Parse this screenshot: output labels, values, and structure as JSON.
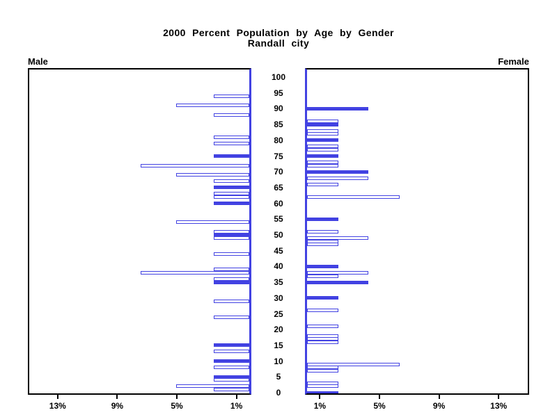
{
  "chart_data": {
    "type": "bar",
    "variant": "population-pyramid",
    "title": "2000 Percent Population by Age by Gender",
    "subtitle": "Randall city",
    "left_panel": {
      "label": "Male",
      "tick_values": [
        13,
        9,
        5,
        1
      ],
      "tick_labels": [
        "13%",
        "9%",
        "5%",
        "1%"
      ]
    },
    "right_panel": {
      "label": "Female",
      "tick_values": [
        1,
        5,
        9,
        13
      ],
      "tick_labels": [
        "1%",
        "5%",
        "9%",
        "13%"
      ]
    },
    "x_axis": {
      "unit": "percent",
      "min": 0,
      "max": 15
    },
    "age_axis": {
      "min": 0,
      "max": 100,
      "step": 5,
      "tick_values": [
        0,
        5,
        10,
        15,
        20,
        25,
        30,
        35,
        40,
        45,
        50,
        55,
        60,
        65,
        70,
        75,
        80,
        85,
        90,
        95,
        100
      ]
    },
    "legend": "solid bars = ages at multiples of 5; hollow bars = other single years of age",
    "colors": {
      "bar": "#4242e2",
      "frame": "#000000",
      "background": "#ffffff"
    },
    "series": [
      {
        "name": "Male",
        "side": "left",
        "bars": [
          {
            "age": 94,
            "pct": 2.4,
            "filled": false
          },
          {
            "age": 91,
            "pct": 4.9,
            "filled": false
          },
          {
            "age": 88,
            "pct": 2.4,
            "filled": false
          },
          {
            "age": 81,
            "pct": 2.4,
            "filled": false
          },
          {
            "age": 79,
            "pct": 2.4,
            "filled": false
          },
          {
            "age": 75,
            "pct": 2.4,
            "filled": true
          },
          {
            "age": 72,
            "pct": 7.3,
            "filled": false
          },
          {
            "age": 69,
            "pct": 4.9,
            "filled": false
          },
          {
            "age": 67,
            "pct": 2.4,
            "filled": false
          },
          {
            "age": 65,
            "pct": 2.4,
            "filled": true
          },
          {
            "age": 63,
            "pct": 2.4,
            "filled": false
          },
          {
            "age": 62,
            "pct": 2.4,
            "filled": false
          },
          {
            "age": 60,
            "pct": 2.4,
            "filled": true
          },
          {
            "age": 54,
            "pct": 4.9,
            "filled": false
          },
          {
            "age": 51,
            "pct": 2.4,
            "filled": false
          },
          {
            "age": 50,
            "pct": 2.4,
            "filled": true
          },
          {
            "age": 49,
            "pct": 2.4,
            "filled": false
          },
          {
            "age": 44,
            "pct": 2.4,
            "filled": false
          },
          {
            "age": 39,
            "pct": 2.4,
            "filled": false
          },
          {
            "age": 38,
            "pct": 7.3,
            "filled": false
          },
          {
            "age": 36,
            "pct": 2.4,
            "filled": false
          },
          {
            "age": 35,
            "pct": 2.4,
            "filled": true
          },
          {
            "age": 29,
            "pct": 2.4,
            "filled": false
          },
          {
            "age": 24,
            "pct": 2.4,
            "filled": false
          },
          {
            "age": 15,
            "pct": 2.4,
            "filled": true
          },
          {
            "age": 13,
            "pct": 2.4,
            "filled": false
          },
          {
            "age": 10,
            "pct": 2.4,
            "filled": true
          },
          {
            "age": 8,
            "pct": 2.4,
            "filled": false
          },
          {
            "age": 5,
            "pct": 2.4,
            "filled": true
          },
          {
            "age": 4,
            "pct": 2.4,
            "filled": false
          },
          {
            "age": 2,
            "pct": 4.9,
            "filled": false
          },
          {
            "age": 1,
            "pct": 2.4,
            "filled": false
          }
        ]
      },
      {
        "name": "Female",
        "side": "right",
        "bars": [
          {
            "age": 90,
            "pct": 4.1,
            "filled": true
          },
          {
            "age": 86,
            "pct": 2.1,
            "filled": false
          },
          {
            "age": 85,
            "pct": 2.1,
            "filled": true
          },
          {
            "age": 83,
            "pct": 2.1,
            "filled": false
          },
          {
            "age": 82,
            "pct": 2.1,
            "filled": false
          },
          {
            "age": 80,
            "pct": 2.1,
            "filled": true
          },
          {
            "age": 78,
            "pct": 2.1,
            "filled": false
          },
          {
            "age": 77,
            "pct": 2.1,
            "filled": false
          },
          {
            "age": 75,
            "pct": 2.1,
            "filled": true
          },
          {
            "age": 73,
            "pct": 2.1,
            "filled": false
          },
          {
            "age": 72,
            "pct": 2.1,
            "filled": false
          },
          {
            "age": 70,
            "pct": 4.1,
            "filled": true
          },
          {
            "age": 68,
            "pct": 4.1,
            "filled": false
          },
          {
            "age": 66,
            "pct": 2.1,
            "filled": false
          },
          {
            "age": 62,
            "pct": 6.2,
            "filled": false
          },
          {
            "age": 55,
            "pct": 2.1,
            "filled": true
          },
          {
            "age": 51,
            "pct": 2.1,
            "filled": false
          },
          {
            "age": 49,
            "pct": 4.1,
            "filled": false
          },
          {
            "age": 48,
            "pct": 2.1,
            "filled": false
          },
          {
            "age": 47,
            "pct": 2.1,
            "filled": false
          },
          {
            "age": 40,
            "pct": 2.1,
            "filled": true
          },
          {
            "age": 38,
            "pct": 4.1,
            "filled": false
          },
          {
            "age": 37,
            "pct": 2.1,
            "filled": false
          },
          {
            "age": 35,
            "pct": 4.1,
            "filled": true
          },
          {
            "age": 30,
            "pct": 2.1,
            "filled": true
          },
          {
            "age": 26,
            "pct": 2.1,
            "filled": false
          },
          {
            "age": 21,
            "pct": 2.1,
            "filled": false
          },
          {
            "age": 18,
            "pct": 2.1,
            "filled": false
          },
          {
            "age": 17,
            "pct": 2.1,
            "filled": false
          },
          {
            "age": 16,
            "pct": 2.1,
            "filled": false
          },
          {
            "age": 9,
            "pct": 6.2,
            "filled": false
          },
          {
            "age": 8,
            "pct": 2.1,
            "filled": false
          },
          {
            "age": 7,
            "pct": 2.1,
            "filled": false
          },
          {
            "age": 3,
            "pct": 2.1,
            "filled": false
          },
          {
            "age": 2,
            "pct": 2.1,
            "filled": false
          },
          {
            "age": 0,
            "pct": 2.1,
            "filled": true
          }
        ]
      }
    ]
  }
}
